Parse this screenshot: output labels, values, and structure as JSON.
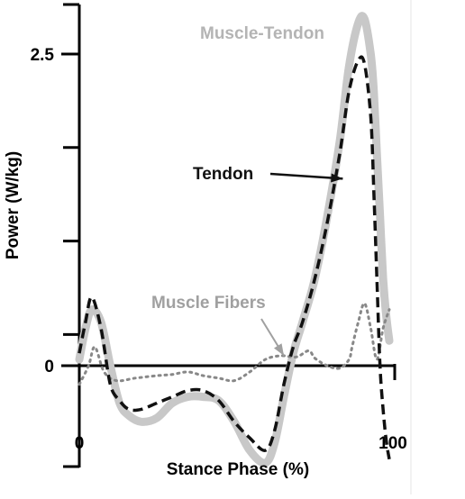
{
  "chart_data": {
    "type": "line",
    "title": "",
    "xlabel": "Stance Phase (%)",
    "ylabel": "Power (W/kg)",
    "xlim": [
      0,
      100
    ],
    "ylim": [
      -0.75,
      2.95
    ],
    "x_ticks": [
      {
        "value": 0,
        "label": "0"
      },
      {
        "value": 100,
        "label": "100"
      }
    ],
    "y_ticks": [
      {
        "value": 2.5,
        "label": "2.5"
      },
      {
        "value": 0,
        "label": "0"
      }
    ],
    "y_minor_ticks": [
      1.75,
      1.0,
      0.25
    ],
    "grid": false,
    "series": [
      {
        "name": "Muscle-Tendon",
        "label": "Muscle-Tendon",
        "color": "#c8c8c8",
        "style": "solid-thick",
        "x": [
          0,
          2,
          4,
          7,
          10,
          13,
          16,
          20,
          25,
          30,
          35,
          40,
          45,
          50,
          55,
          60,
          63,
          66,
          69,
          72,
          76,
          80,
          84,
          87,
          90,
          92,
          94,
          95,
          96,
          97,
          98,
          99,
          100
        ],
        "y": [
          0.05,
          0.3,
          0.45,
          0.35,
          0.0,
          -0.3,
          -0.4,
          -0.45,
          -0.42,
          -0.3,
          -0.25,
          -0.25,
          -0.28,
          -0.45,
          -0.68,
          -0.78,
          -0.62,
          -0.25,
          0.1,
          0.35,
          0.7,
          1.2,
          1.8,
          2.4,
          2.75,
          2.78,
          2.5,
          2.2,
          1.7,
          1.2,
          0.7,
          0.4,
          0.2
        ]
      },
      {
        "name": "Tendon",
        "label": "Tendon",
        "color": "#111111",
        "style": "dashed",
        "x": [
          0,
          2,
          4,
          7,
          10,
          13,
          16,
          20,
          25,
          30,
          35,
          40,
          45,
          50,
          55,
          60,
          63,
          66,
          69,
          72,
          76,
          80,
          84,
          87,
          90,
          92,
          94,
          95,
          96,
          97,
          98,
          99,
          100
        ],
        "y": [
          0.1,
          0.35,
          0.55,
          0.3,
          -0.15,
          -0.28,
          -0.35,
          -0.35,
          -0.3,
          -0.25,
          -0.2,
          -0.2,
          -0.28,
          -0.45,
          -0.58,
          -0.68,
          -0.52,
          -0.15,
          0.15,
          0.35,
          0.7,
          1.15,
          1.7,
          2.2,
          2.45,
          2.42,
          2.0,
          1.4,
          0.7,
          0.0,
          -0.35,
          -0.6,
          -0.75
        ]
      },
      {
        "name": "Muscle Fibers",
        "label": "Muscle Fibers",
        "color": "#888888",
        "style": "dotted",
        "x": [
          0,
          3,
          5,
          8,
          12,
          18,
          25,
          30,
          35,
          40,
          45,
          50,
          55,
          60,
          65,
          70,
          74,
          76,
          80,
          84,
          87,
          88,
          90,
          92,
          94,
          96,
          98,
          100
        ],
        "y": [
          -0.15,
          0.0,
          0.15,
          -0.05,
          -0.12,
          -0.1,
          -0.08,
          -0.07,
          -0.05,
          -0.08,
          -0.1,
          -0.12,
          -0.05,
          0.05,
          0.08,
          0.07,
          0.12,
          0.06,
          0.0,
          -0.02,
          0.05,
          0.15,
          0.35,
          0.5,
          0.3,
          0.05,
          0.3,
          0.45
        ]
      }
    ],
    "annotations": [
      {
        "text": "Muscle-Tendon",
        "color": "#b4b4b4",
        "arrow": false
      },
      {
        "text": "Tendon",
        "color": "#111111",
        "arrow": true,
        "arrow_to": [
          85,
          1.5
        ]
      },
      {
        "text": "Muscle Fibers",
        "color": "#a0a0a0",
        "arrow": true,
        "arrow_to": [
          66,
          0.08
        ]
      }
    ]
  }
}
